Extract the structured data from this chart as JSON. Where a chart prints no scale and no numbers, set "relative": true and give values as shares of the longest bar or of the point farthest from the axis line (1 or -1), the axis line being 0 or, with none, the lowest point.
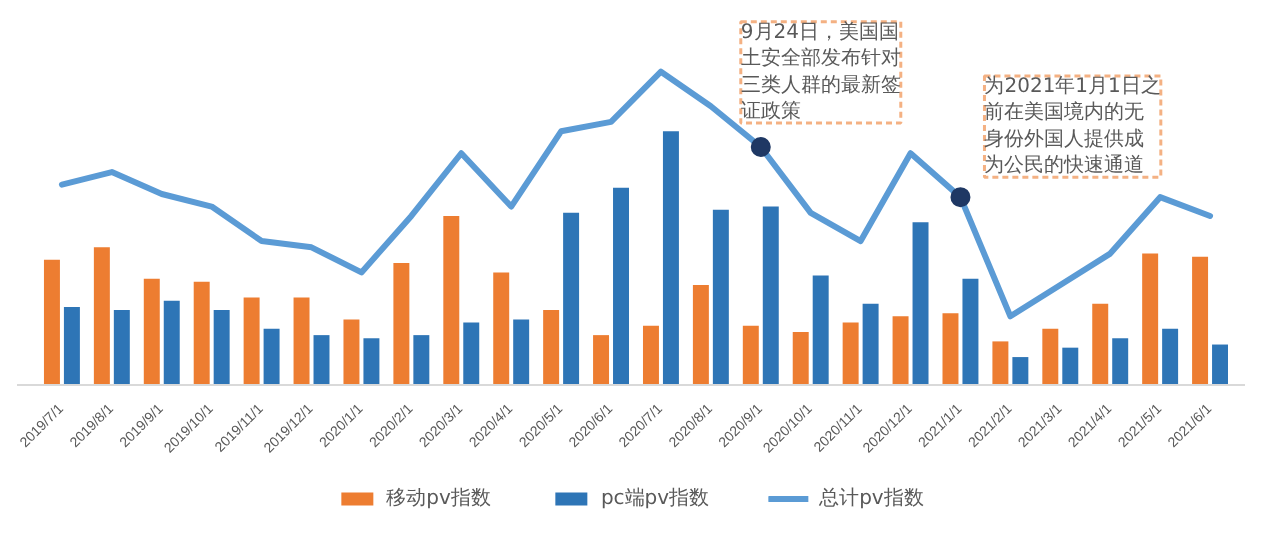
{
  "chart_data": {
    "type": "bar",
    "relative": true,
    "categories": [
      "2019/7/1",
      "2019/8/1",
      "2019/9/1",
      "2019/10/1",
      "2019/11/1",
      "2019/12/1",
      "2020/1/1",
      "2020/2/1",
      "2020/3/1",
      "2020/4/1",
      "2020/5/1",
      "2020/6/1",
      "2020/7/1",
      "2020/8/1",
      "2020/9/1",
      "2020/10/1",
      "2020/11/1",
      "2020/12/1",
      "2021/1/1",
      "2021/2/1",
      "2021/3/1",
      "2021/4/1",
      "2021/5/1",
      "2021/6/1"
    ],
    "series": [
      {
        "name": "移动pv指数",
        "color": "#ed7d31",
        "values": [
          0.4,
          0.44,
          0.34,
          0.33,
          0.28,
          0.28,
          0.21,
          0.39,
          0.54,
          0.36,
          0.24,
          0.16,
          0.19,
          0.32,
          0.19,
          0.17,
          0.2,
          0.22,
          0.23,
          0.14,
          0.18,
          0.26,
          0.42,
          0.41
        ]
      },
      {
        "name": "pc端pv指数",
        "color": "#2e75b6",
        "values": [
          0.25,
          0.24,
          0.27,
          0.24,
          0.18,
          0.16,
          0.15,
          0.16,
          0.2,
          0.21,
          0.55,
          0.63,
          0.81,
          0.56,
          0.57,
          0.35,
          0.26,
          0.52,
          0.34,
          0.09,
          0.12,
          0.15,
          0.18,
          0.13
        ]
      },
      {
        "name": "总计pv指数",
        "type": "line",
        "color": "#5b9bd5",
        "values": [
          0.64,
          0.68,
          0.61,
          0.57,
          0.46,
          0.44,
          0.36,
          0.54,
          0.74,
          0.57,
          0.81,
          0.84,
          1.0,
          0.89,
          0.76,
          0.55,
          0.46,
          0.74,
          0.6,
          0.22,
          0.32,
          0.42,
          0.6,
          0.54
        ]
      }
    ],
    "annotations": [
      {
        "text": "9月24日，美国国土安全部发布针对三类人群的最新签证政策",
        "x": "2020/9/1",
        "y": 0.76
      },
      {
        "text": "为2021年1月1日之前在美国境内的无身份外国人提供成为公民的快速通道",
        "x": "2021/1/1",
        "y": 0.6
      }
    ],
    "legend": "bottom",
    "grid": false
  }
}
